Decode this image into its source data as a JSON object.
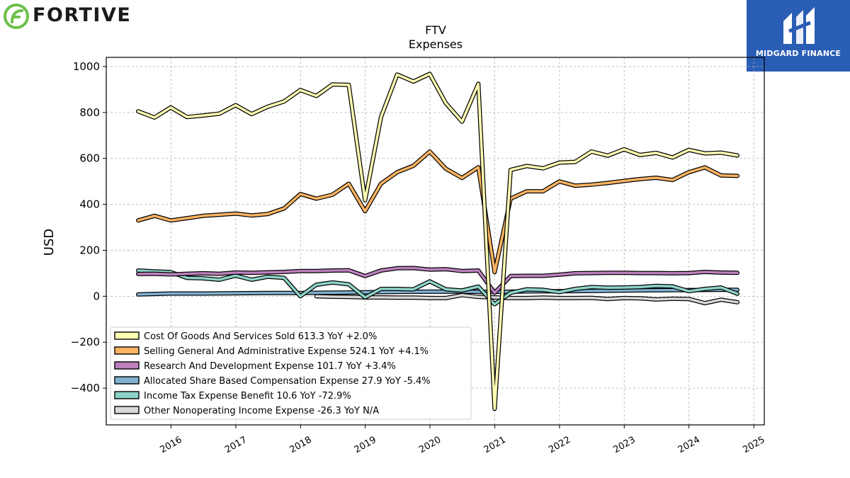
{
  "brand": {
    "name": "FORTIVE",
    "icon": "fortive-leaf-icon",
    "color": "#6cc04a"
  },
  "badge": {
    "text": "MIDGARD FINANCE",
    "icon": "midgard-logo-icon",
    "color": "#2a5db4"
  },
  "chart_data": {
    "type": "line",
    "title": "FTV",
    "subtitle": "Expenses",
    "ylabel": "USD",
    "xlabel": "",
    "ylim": [
      -560,
      1040
    ],
    "xlim": [
      "2015-01-01",
      "2025-03-01"
    ],
    "y_ticks": [
      -400,
      -200,
      0,
      200,
      400,
      600,
      800,
      1000
    ],
    "y_tick_labels": [
      "−400",
      "−200",
      "0",
      "200",
      "400",
      "600",
      "800",
      "1000"
    ],
    "x_ticks": [
      "2016-01-01",
      "2017-01-01",
      "2018-01-01",
      "2019-01-01",
      "2020-01-01",
      "2021-01-01",
      "2022-01-01",
      "2023-01-01",
      "2024-01-01",
      "2025-01-01"
    ],
    "x_tick_labels": [
      "2016",
      "2017",
      "2018",
      "2019",
      "2020",
      "2021",
      "2022",
      "2023",
      "2024",
      "2025"
    ],
    "grid": true,
    "legend_position": "lower-left",
    "series": [
      {
        "legend": "Cost Of Goods And Services Sold  613.3 YoY +2.0%",
        "color": "#ffffb3",
        "points": [
          [
            "2015-06-30",
            805
          ],
          [
            "2015-09-30",
            778
          ],
          [
            "2015-12-31",
            822
          ],
          [
            "2016-03-31",
            780
          ],
          [
            "2016-06-30",
            787
          ],
          [
            "2016-09-30",
            795
          ],
          [
            "2016-12-31",
            832
          ],
          [
            "2017-03-31",
            793
          ],
          [
            "2017-06-30",
            825
          ],
          [
            "2017-09-30",
            848
          ],
          [
            "2017-12-31",
            898
          ],
          [
            "2018-03-31",
            872
          ],
          [
            "2018-06-30",
            922
          ],
          [
            "2018-09-30",
            920
          ],
          [
            "2018-12-31",
            418
          ],
          [
            "2019-03-31",
            780
          ],
          [
            "2019-06-30",
            965
          ],
          [
            "2019-09-30",
            935
          ],
          [
            "2019-12-31",
            968
          ],
          [
            "2020-03-31",
            840
          ],
          [
            "2020-06-30",
            760
          ],
          [
            "2020-09-30",
            925
          ],
          [
            "2020-12-31",
            -490
          ],
          [
            "2021-03-31",
            550
          ],
          [
            "2021-06-30",
            567
          ],
          [
            "2021-09-30",
            557
          ],
          [
            "2021-12-31",
            582
          ],
          [
            "2022-03-31",
            585
          ],
          [
            "2022-06-30",
            630
          ],
          [
            "2022-09-30",
            612
          ],
          [
            "2022-12-31",
            640
          ],
          [
            "2023-03-31",
            615
          ],
          [
            "2023-06-30",
            624
          ],
          [
            "2023-09-30",
            604
          ],
          [
            "2023-12-31",
            637
          ],
          [
            "2024-03-31",
            622
          ],
          [
            "2024-06-30",
            625
          ],
          [
            "2024-09-30",
            613
          ]
        ]
      },
      {
        "legend": "Selling General And Administrative Expense  524.1 YoY +4.1%",
        "color": "#fdb462",
        "points": [
          [
            "2015-06-30",
            330
          ],
          [
            "2015-09-30",
            350
          ],
          [
            "2015-12-31",
            330
          ],
          [
            "2016-03-31",
            340
          ],
          [
            "2016-06-30",
            350
          ],
          [
            "2016-09-30",
            355
          ],
          [
            "2016-12-31",
            360
          ],
          [
            "2017-03-31",
            352
          ],
          [
            "2017-06-30",
            358
          ],
          [
            "2017-09-30",
            382
          ],
          [
            "2017-12-31",
            445
          ],
          [
            "2018-03-31",
            425
          ],
          [
            "2018-06-30",
            442
          ],
          [
            "2018-09-30",
            490
          ],
          [
            "2018-12-31",
            370
          ],
          [
            "2019-03-31",
            490
          ],
          [
            "2019-06-30",
            540
          ],
          [
            "2019-09-30",
            568
          ],
          [
            "2019-12-31",
            630
          ],
          [
            "2020-03-31",
            555
          ],
          [
            "2020-06-30",
            515
          ],
          [
            "2020-09-30",
            562
          ],
          [
            "2020-12-31",
            105
          ],
          [
            "2021-03-31",
            425
          ],
          [
            "2021-06-30",
            457
          ],
          [
            "2021-09-30",
            457
          ],
          [
            "2021-12-31",
            500
          ],
          [
            "2022-03-31",
            481
          ],
          [
            "2022-06-30",
            486
          ],
          [
            "2022-09-30",
            493
          ],
          [
            "2022-12-31",
            502
          ],
          [
            "2023-03-31",
            510
          ],
          [
            "2023-06-30",
            516
          ],
          [
            "2023-09-30",
            506
          ],
          [
            "2023-12-31",
            540
          ],
          [
            "2024-03-31",
            561
          ],
          [
            "2024-06-30",
            526
          ],
          [
            "2024-09-30",
            524
          ]
        ]
      },
      {
        "legend": "Research And Development Expense  101.7 YoY +3.4%",
        "color": "#bc80bd",
        "points": [
          [
            "2015-06-30",
            97
          ],
          [
            "2015-09-30",
            98
          ],
          [
            "2015-12-31",
            95
          ],
          [
            "2016-03-31",
            98
          ],
          [
            "2016-06-30",
            100
          ],
          [
            "2016-09-30",
            98
          ],
          [
            "2016-12-31",
            103
          ],
          [
            "2017-03-31",
            102
          ],
          [
            "2017-06-30",
            104
          ],
          [
            "2017-09-30",
            106
          ],
          [
            "2017-12-31",
            110
          ],
          [
            "2018-03-31",
            110
          ],
          [
            "2018-06-30",
            112
          ],
          [
            "2018-09-30",
            113
          ],
          [
            "2018-12-31",
            88
          ],
          [
            "2019-03-31",
            112
          ],
          [
            "2019-06-30",
            122
          ],
          [
            "2019-09-30",
            123
          ],
          [
            "2019-12-31",
            116
          ],
          [
            "2020-03-31",
            118
          ],
          [
            "2020-06-30",
            110
          ],
          [
            "2020-09-30",
            112
          ],
          [
            "2020-12-31",
            15
          ],
          [
            "2021-03-31",
            88
          ],
          [
            "2021-06-30",
            89
          ],
          [
            "2021-09-30",
            89
          ],
          [
            "2021-12-31",
            94
          ],
          [
            "2022-03-31",
            100
          ],
          [
            "2022-06-30",
            101
          ],
          [
            "2022-09-30",
            102
          ],
          [
            "2022-12-31",
            102
          ],
          [
            "2023-03-31",
            101
          ],
          [
            "2023-06-30",
            101
          ],
          [
            "2023-09-30",
            100
          ],
          [
            "2023-12-31",
            101
          ],
          [
            "2024-03-31",
            106
          ],
          [
            "2024-06-30",
            103
          ],
          [
            "2024-09-30",
            102
          ]
        ]
      },
      {
        "legend": "Allocated Share Based Compensation Expense  27.9 YoY -5.4%",
        "color": "#80b1d3",
        "points": [
          [
            "2015-06-30",
            8
          ],
          [
            "2015-09-30",
            10
          ],
          [
            "2015-12-31",
            12
          ],
          [
            "2016-06-30",
            12
          ],
          [
            "2016-12-31",
            13
          ],
          [
            "2017-06-30",
            14
          ],
          [
            "2017-12-31",
            14
          ],
          [
            "2018-06-30",
            16
          ],
          [
            "2018-12-31",
            17
          ],
          [
            "2019-06-30",
            19
          ],
          [
            "2019-12-31",
            20
          ],
          [
            "2020-06-30",
            20
          ],
          [
            "2020-12-31",
            19
          ],
          [
            "2021-06-30",
            21
          ],
          [
            "2021-12-31",
            22
          ],
          [
            "2022-06-30",
            23
          ],
          [
            "2022-12-31",
            25
          ],
          [
            "2023-06-30",
            26
          ],
          [
            "2023-12-31",
            27
          ],
          [
            "2024-06-30",
            28
          ],
          [
            "2024-09-30",
            28
          ]
        ]
      },
      {
        "legend": "Income Tax Expense Benefit  10.6 YoY -72.9%",
        "color": "#8dd3c7",
        "points": [
          [
            "2015-06-30",
            112
          ],
          [
            "2015-09-30",
            108
          ],
          [
            "2015-12-31",
            105
          ],
          [
            "2016-03-31",
            80
          ],
          [
            "2016-06-30",
            78
          ],
          [
            "2016-09-30",
            72
          ],
          [
            "2016-12-31",
            90
          ],
          [
            "2017-03-31",
            72
          ],
          [
            "2017-06-30",
            85
          ],
          [
            "2017-09-30",
            80
          ],
          [
            "2017-12-31",
            0
          ],
          [
            "2018-03-31",
            50
          ],
          [
            "2018-06-30",
            60
          ],
          [
            "2018-09-30",
            52
          ],
          [
            "2018-12-31",
            -5
          ],
          [
            "2019-03-31",
            32
          ],
          [
            "2019-06-30",
            32
          ],
          [
            "2019-09-30",
            30
          ],
          [
            "2019-12-31",
            65
          ],
          [
            "2020-03-31",
            30
          ],
          [
            "2020-06-30",
            25
          ],
          [
            "2020-09-30",
            42
          ],
          [
            "2020-12-31",
            -35
          ],
          [
            "2021-03-31",
            15
          ],
          [
            "2021-06-30",
            30
          ],
          [
            "2021-09-30",
            28
          ],
          [
            "2021-12-31",
            18
          ],
          [
            "2022-03-31",
            32
          ],
          [
            "2022-06-30",
            40
          ],
          [
            "2022-09-30",
            37
          ],
          [
            "2022-12-31",
            38
          ],
          [
            "2023-03-31",
            40
          ],
          [
            "2023-06-30",
            45
          ],
          [
            "2023-09-30",
            43
          ],
          [
            "2023-12-31",
            22
          ],
          [
            "2024-03-31",
            32
          ],
          [
            "2024-06-30",
            38
          ],
          [
            "2024-09-30",
            11
          ]
        ]
      },
      {
        "legend": "Other Nonoperating Income Expense  -26.3 YoY N/A",
        "color": "#d9d9d9",
        "points": [
          [
            "2018-03-31",
            0
          ],
          [
            "2018-06-30",
            -2
          ],
          [
            "2018-09-30",
            -3
          ],
          [
            "2018-12-31",
            -5
          ],
          [
            "2019-03-31",
            -5
          ],
          [
            "2019-06-30",
            -6
          ],
          [
            "2019-09-30",
            -6
          ],
          [
            "2019-12-31",
            -8
          ],
          [
            "2020-03-31",
            -8
          ],
          [
            "2020-06-30",
            5
          ],
          [
            "2020-09-30",
            -3
          ],
          [
            "2020-12-31",
            -5
          ],
          [
            "2021-03-31",
            -8
          ],
          [
            "2021-06-30",
            -8
          ],
          [
            "2021-09-30",
            -6
          ],
          [
            "2021-12-31",
            -8
          ],
          [
            "2022-03-31",
            -8
          ],
          [
            "2022-06-30",
            -7
          ],
          [
            "2022-09-30",
            -12
          ],
          [
            "2022-12-31",
            -8
          ],
          [
            "2023-03-31",
            -9
          ],
          [
            "2023-06-30",
            -14
          ],
          [
            "2023-09-30",
            -11
          ],
          [
            "2023-12-31",
            -12
          ],
          [
            "2024-03-31",
            -30
          ],
          [
            "2024-06-30",
            -15
          ],
          [
            "2024-09-30",
            -26
          ]
        ]
      }
    ]
  }
}
